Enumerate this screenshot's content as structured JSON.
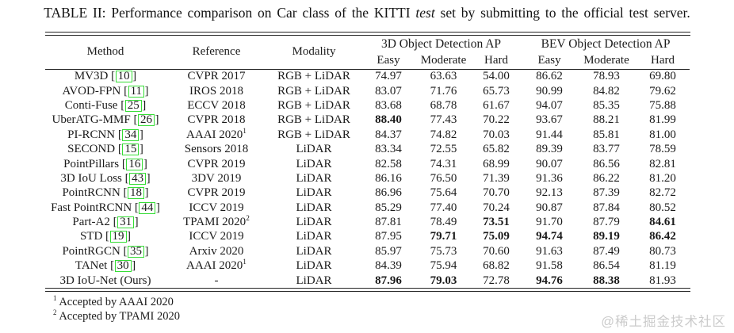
{
  "caption": {
    "prefix": "TABLE II: Performance comparison on Car class of the KITTI ",
    "italic": "test",
    "suffix": " set by submitting to the official test server."
  },
  "table": {
    "headers": {
      "method": "Method",
      "reference": "Reference",
      "modality": "Modality"
    },
    "groups": [
      {
        "label": "3D Object Detection AP"
      },
      {
        "label": "BEV Object Detection AP"
      }
    ],
    "sub": [
      "Easy",
      "Moderate",
      "Hard"
    ],
    "rows": [
      {
        "method": "MV3D",
        "cite": "10",
        "reference": "CVPR 2017",
        "ref_sup": "",
        "modality": "RGB + LiDAR",
        "values": [
          "74.97",
          "63.63",
          "54.00",
          "86.62",
          "78.93",
          "69.80"
        ],
        "bold": [
          false,
          false,
          false,
          false,
          false,
          false
        ]
      },
      {
        "method": "AVOD-FPN",
        "cite": "11",
        "reference": "IROS 2018",
        "ref_sup": "",
        "modality": "RGB + LiDAR",
        "values": [
          "83.07",
          "71.76",
          "65.73",
          "90.99",
          "84.82",
          "79.62"
        ],
        "bold": [
          false,
          false,
          false,
          false,
          false,
          false
        ]
      },
      {
        "method": "Conti-Fuse",
        "cite": "25",
        "reference": "ECCV 2018",
        "ref_sup": "",
        "modality": "RGB + LiDAR",
        "values": [
          "83.68",
          "68.78",
          "61.67",
          "94.07",
          "85.35",
          "75.88"
        ],
        "bold": [
          false,
          false,
          false,
          false,
          false,
          false
        ]
      },
      {
        "method": "UberATG-MMF",
        "cite": "26",
        "reference": "CVPR 2018",
        "ref_sup": "",
        "modality": "RGB + LiDAR",
        "values": [
          "88.40",
          "77.43",
          "70.22",
          "93.67",
          "88.21",
          "81.99"
        ],
        "bold": [
          true,
          false,
          false,
          false,
          false,
          false
        ]
      },
      {
        "method": "PI-RCNN",
        "cite": "34",
        "reference": "AAAI 2020",
        "ref_sup": "1",
        "modality": "RGB + LiDAR",
        "values": [
          "84.37",
          "74.82",
          "70.03",
          "91.44",
          "85.81",
          "81.00"
        ],
        "bold": [
          false,
          false,
          false,
          false,
          false,
          false
        ]
      },
      {
        "method": "SECOND",
        "cite": "15",
        "reference": "Sensors 2018",
        "ref_sup": "",
        "modality": "LiDAR",
        "values": [
          "83.34",
          "72.55",
          "65.82",
          "89.39",
          "83.77",
          "78.59"
        ],
        "bold": [
          false,
          false,
          false,
          false,
          false,
          false
        ]
      },
      {
        "method": "PointPillars",
        "cite": "16",
        "reference": "CVPR 2019",
        "ref_sup": "",
        "modality": "LiDAR",
        "values": [
          "82.58",
          "74.31",
          "68.99",
          "90.07",
          "86.56",
          "82.81"
        ],
        "bold": [
          false,
          false,
          false,
          false,
          false,
          false
        ]
      },
      {
        "method": "3D IoU Loss",
        "cite": "43",
        "reference": "3DV 2019",
        "ref_sup": "",
        "modality": "LiDAR",
        "values": [
          "86.16",
          "76.50",
          "71.39",
          "91.36",
          "86.22",
          "81.20"
        ],
        "bold": [
          false,
          false,
          false,
          false,
          false,
          false
        ]
      },
      {
        "method": "PointRCNN",
        "cite": "18",
        "reference": "CVPR 2019",
        "ref_sup": "",
        "modality": "LiDAR",
        "values": [
          "86.96",
          "75.64",
          "70.70",
          "92.13",
          "87.39",
          "82.72"
        ],
        "bold": [
          false,
          false,
          false,
          false,
          false,
          false
        ]
      },
      {
        "method": "Fast PointRCNN",
        "cite": "44",
        "reference": "ICCV 2019",
        "ref_sup": "",
        "modality": "LiDAR",
        "values": [
          "85.29",
          "77.40",
          "70.24",
          "90.87",
          "87.84",
          "80.52"
        ],
        "bold": [
          false,
          false,
          false,
          false,
          false,
          false
        ]
      },
      {
        "method": "Part-A2",
        "cite": "31",
        "reference": "TPAMI 2020",
        "ref_sup": "2",
        "modality": "LiDAR",
        "values": [
          "87.81",
          "78.49",
          "73.51",
          "91.70",
          "87.79",
          "84.61"
        ],
        "bold": [
          false,
          false,
          true,
          false,
          false,
          true
        ]
      },
      {
        "method": "STD",
        "cite": "19",
        "reference": "ICCV 2019",
        "ref_sup": "",
        "modality": "LiDAR",
        "values": [
          "87.95",
          "79.71",
          "75.09",
          "94.74",
          "89.19",
          "86.42"
        ],
        "bold": [
          false,
          true,
          true,
          true,
          true,
          true
        ]
      },
      {
        "method": "PointRGCN",
        "cite": "35",
        "reference": "Arxiv 2020",
        "ref_sup": "",
        "modality": "LiDAR",
        "values": [
          "85.97",
          "75.73",
          "70.60",
          "91.63",
          "87.49",
          "80.73"
        ],
        "bold": [
          false,
          false,
          false,
          false,
          false,
          false
        ]
      },
      {
        "method": "TANet",
        "cite": "30",
        "reference": "AAAI 2020",
        "ref_sup": "1",
        "modality": "LiDAR",
        "values": [
          "84.39",
          "75.94",
          "68.82",
          "91.58",
          "86.54",
          "81.19"
        ],
        "bold": [
          false,
          false,
          false,
          false,
          false,
          false
        ]
      },
      {
        "method": "3D IoU-Net (Ours)",
        "cite": "",
        "reference": "-",
        "ref_sup": "",
        "modality": "LiDAR",
        "values": [
          "87.96",
          "79.03",
          "72.78",
          "94.76",
          "88.38",
          "81.93"
        ],
        "bold": [
          true,
          true,
          false,
          true,
          true,
          false
        ]
      }
    ],
    "footnotes": [
      {
        "sup": "1",
        "text": "Accepted by AAAI 2020"
      },
      {
        "sup": "2",
        "text": "Accepted by TPAMI 2020"
      }
    ]
  },
  "watermark": {
    "text": "@稀土掘金技术社区"
  },
  "colors": {
    "citation_box": "#35dd35",
    "text": "#1b1b1b",
    "watermark": "#cbcbcb"
  }
}
